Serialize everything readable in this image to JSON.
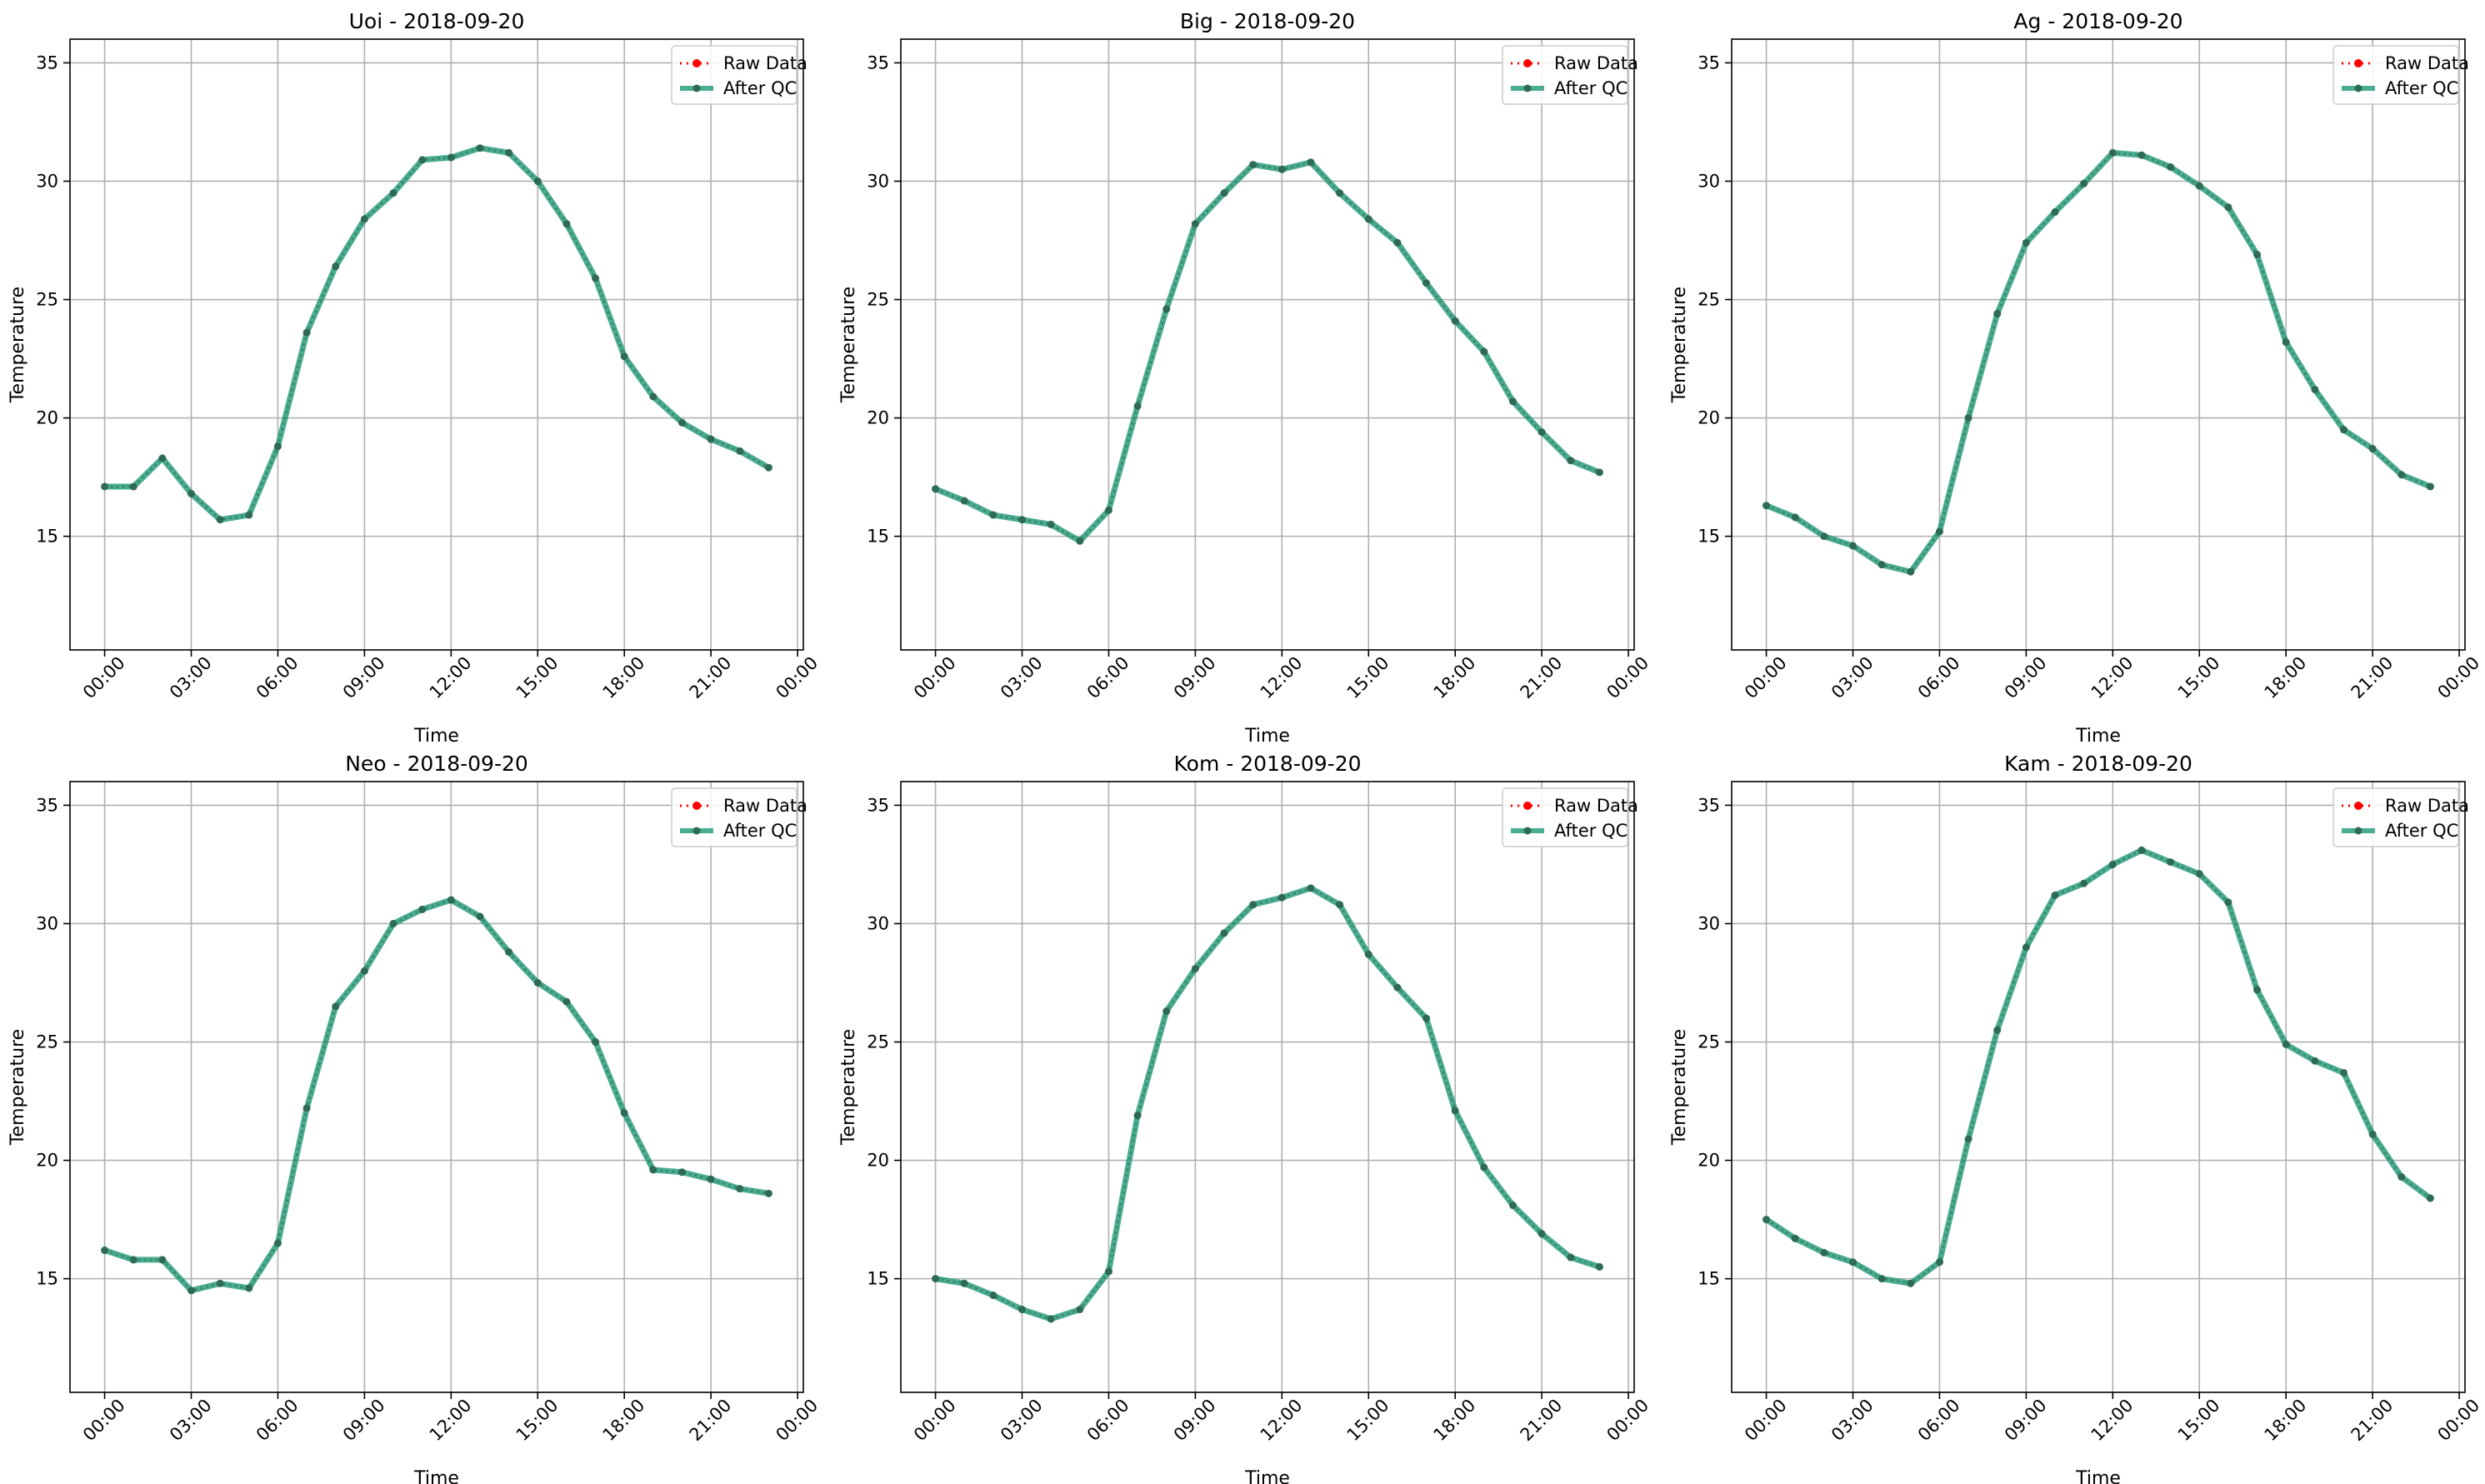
{
  "figure": {
    "colors": {
      "raw": "#ff0000",
      "qc": "#2a9d7c",
      "qc_marker": "#2e6b55",
      "grid": "#b0b0b0"
    }
  },
  "chart_data": [
    {
      "type": "line",
      "title": "Uoi - 2018-09-20",
      "xlabel": "Time",
      "ylabel": "Temperature",
      "ylim": [
        10.2,
        36.0
      ],
      "xlim": [
        "2018-09-19 22:48",
        "2018-09-21 00:12"
      ],
      "x": [
        "00:00",
        "01:00",
        "02:00",
        "03:00",
        "04:00",
        "05:00",
        "06:00",
        "07:00",
        "08:00",
        "09:00",
        "10:00",
        "11:00",
        "12:00",
        "13:00",
        "14:00",
        "15:00",
        "16:00",
        "17:00",
        "18:00",
        "19:00",
        "20:00",
        "21:00",
        "22:00",
        "23:00"
      ],
      "xtick_labels": [
        "00:00",
        "03:00",
        "06:00",
        "09:00",
        "12:00",
        "15:00",
        "18:00",
        "21:00",
        "00:00"
      ],
      "ytick_labels": [
        "15",
        "20",
        "25",
        "30",
        "35"
      ],
      "legend": {
        "position": "top-right",
        "entries": [
          "Raw Data",
          "After QC"
        ]
      },
      "grid": true,
      "series": [
        {
          "name": "Raw Data",
          "values": [
            17.1,
            17.1,
            18.3,
            16.8,
            15.7,
            15.9,
            18.8,
            23.6,
            26.4,
            28.4,
            29.5,
            30.9,
            31.0,
            31.4,
            31.2,
            30.0,
            28.2,
            25.9,
            22.6,
            20.9,
            19.8,
            19.1,
            18.6,
            17.9
          ]
        },
        {
          "name": "After QC",
          "values": [
            17.1,
            17.1,
            18.3,
            16.8,
            15.7,
            15.9,
            18.8,
            23.6,
            26.4,
            28.4,
            29.5,
            30.9,
            31.0,
            31.4,
            31.2,
            30.0,
            28.2,
            25.9,
            22.6,
            20.9,
            19.8,
            19.1,
            18.6,
            17.9
          ]
        }
      ]
    },
    {
      "type": "line",
      "title": "Big - 2018-09-20",
      "xlabel": "Time",
      "ylabel": "Temperature",
      "ylim": [
        10.2,
        36.0
      ],
      "xlim": [
        "2018-09-19 22:48",
        "2018-09-21 00:12"
      ],
      "x": [
        "00:00",
        "01:00",
        "02:00",
        "03:00",
        "04:00",
        "05:00",
        "06:00",
        "07:00",
        "08:00",
        "09:00",
        "10:00",
        "11:00",
        "12:00",
        "13:00",
        "14:00",
        "15:00",
        "16:00",
        "17:00",
        "18:00",
        "19:00",
        "20:00",
        "21:00",
        "22:00",
        "23:00"
      ],
      "xtick_labels": [
        "00:00",
        "03:00",
        "06:00",
        "09:00",
        "12:00",
        "15:00",
        "18:00",
        "21:00",
        "00:00"
      ],
      "ytick_labels": [
        "15",
        "20",
        "25",
        "30",
        "35"
      ],
      "legend": {
        "position": "top-right",
        "entries": [
          "Raw Data",
          "After QC"
        ]
      },
      "grid": true,
      "series": [
        {
          "name": "Raw Data",
          "values": [
            17.0,
            16.5,
            15.9,
            15.7,
            15.5,
            14.8,
            16.1,
            20.5,
            24.6,
            28.2,
            29.5,
            30.7,
            30.5,
            30.8,
            29.5,
            28.4,
            27.4,
            25.7,
            24.1,
            22.8,
            20.7,
            19.4,
            18.2,
            17.7
          ]
        },
        {
          "name": "After QC",
          "values": [
            17.0,
            16.5,
            15.9,
            15.7,
            15.5,
            14.8,
            16.1,
            20.5,
            24.6,
            28.2,
            29.5,
            30.7,
            30.5,
            30.8,
            29.5,
            28.4,
            27.4,
            25.7,
            24.1,
            22.8,
            20.7,
            19.4,
            18.2,
            17.7
          ]
        }
      ]
    },
    {
      "type": "line",
      "title": "Ag - 2018-09-20",
      "xlabel": "Time",
      "ylabel": "Temperature",
      "ylim": [
        10.2,
        36.0
      ],
      "xlim": [
        "2018-09-19 22:48",
        "2018-09-21 00:12"
      ],
      "x": [
        "00:00",
        "01:00",
        "02:00",
        "03:00",
        "04:00",
        "05:00",
        "06:00",
        "07:00",
        "08:00",
        "09:00",
        "10:00",
        "11:00",
        "12:00",
        "13:00",
        "14:00",
        "15:00",
        "16:00",
        "17:00",
        "18:00",
        "19:00",
        "20:00",
        "21:00",
        "22:00",
        "23:00"
      ],
      "xtick_labels": [
        "00:00",
        "03:00",
        "06:00",
        "09:00",
        "12:00",
        "15:00",
        "18:00",
        "21:00",
        "00:00"
      ],
      "ytick_labels": [
        "15",
        "20",
        "25",
        "30",
        "35"
      ],
      "legend": {
        "position": "top-right",
        "entries": [
          "Raw Data",
          "After QC"
        ]
      },
      "grid": true,
      "series": [
        {
          "name": "Raw Data",
          "values": [
            16.3,
            15.8,
            15.0,
            14.6,
            13.8,
            13.5,
            15.2,
            20.0,
            24.4,
            27.4,
            28.7,
            29.9,
            31.2,
            31.1,
            30.6,
            29.8,
            28.9,
            26.9,
            23.2,
            21.2,
            19.5,
            18.7,
            17.6,
            17.1
          ]
        },
        {
          "name": "After QC",
          "values": [
            16.3,
            15.8,
            15.0,
            14.6,
            13.8,
            13.5,
            15.2,
            20.0,
            24.4,
            27.4,
            28.7,
            29.9,
            31.2,
            31.1,
            30.6,
            29.8,
            28.9,
            26.9,
            23.2,
            21.2,
            19.5,
            18.7,
            17.6,
            17.1
          ]
        }
      ]
    },
    {
      "type": "line",
      "title": "Neo - 2018-09-20",
      "xlabel": "Time",
      "ylabel": "Temperature",
      "ylim": [
        10.2,
        36.0
      ],
      "xlim": [
        "2018-09-19 22:48",
        "2018-09-21 00:12"
      ],
      "x": [
        "00:00",
        "01:00",
        "02:00",
        "03:00",
        "04:00",
        "05:00",
        "06:00",
        "07:00",
        "08:00",
        "09:00",
        "10:00",
        "11:00",
        "12:00",
        "13:00",
        "14:00",
        "15:00",
        "16:00",
        "17:00",
        "18:00",
        "19:00",
        "20:00",
        "21:00",
        "22:00",
        "23:00"
      ],
      "xtick_labels": [
        "00:00",
        "03:00",
        "06:00",
        "09:00",
        "12:00",
        "15:00",
        "18:00",
        "21:00",
        "00:00"
      ],
      "ytick_labels": [
        "15",
        "20",
        "25",
        "30",
        "35"
      ],
      "legend": {
        "position": "top-right",
        "entries": [
          "Raw Data",
          "After QC"
        ]
      },
      "grid": true,
      "series": [
        {
          "name": "Raw Data",
          "values": [
            16.2,
            15.8,
            15.8,
            14.5,
            14.8,
            14.6,
            16.5,
            22.2,
            26.5,
            28.0,
            30.0,
            30.6,
            31.0,
            30.3,
            28.8,
            27.5,
            26.7,
            25.0,
            22.0,
            19.6,
            19.5,
            19.2,
            18.8,
            18.6
          ]
        },
        {
          "name": "After QC",
          "values": [
            16.2,
            15.8,
            15.8,
            14.5,
            14.8,
            14.6,
            16.5,
            22.2,
            26.5,
            28.0,
            30.0,
            30.6,
            31.0,
            30.3,
            28.8,
            27.5,
            26.7,
            25.0,
            22.0,
            19.6,
            19.5,
            19.2,
            18.8,
            18.6
          ]
        }
      ]
    },
    {
      "type": "line",
      "title": "Kom - 2018-09-20",
      "xlabel": "Time",
      "ylabel": "Temperature",
      "ylim": [
        10.2,
        36.0
      ],
      "xlim": [
        "2018-09-19 22:48",
        "2018-09-21 00:12"
      ],
      "x": [
        "00:00",
        "01:00",
        "02:00",
        "03:00",
        "04:00",
        "05:00",
        "06:00",
        "07:00",
        "08:00",
        "09:00",
        "10:00",
        "11:00",
        "12:00",
        "13:00",
        "14:00",
        "15:00",
        "16:00",
        "17:00",
        "18:00",
        "19:00",
        "20:00",
        "21:00",
        "22:00",
        "23:00"
      ],
      "xtick_labels": [
        "00:00",
        "03:00",
        "06:00",
        "09:00",
        "12:00",
        "15:00",
        "18:00",
        "21:00",
        "00:00"
      ],
      "ytick_labels": [
        "15",
        "20",
        "25",
        "30",
        "35"
      ],
      "legend": {
        "position": "top-right",
        "entries": [
          "Raw Data",
          "After QC"
        ]
      },
      "grid": true,
      "series": [
        {
          "name": "Raw Data",
          "values": [
            15.0,
            14.8,
            14.3,
            13.7,
            13.3,
            13.7,
            15.3,
            21.9,
            26.3,
            28.1,
            29.6,
            30.8,
            31.1,
            31.5,
            30.8,
            28.7,
            27.3,
            26.0,
            22.1,
            19.7,
            18.1,
            16.9,
            15.9,
            15.5
          ]
        },
        {
          "name": "After QC",
          "values": [
            15.0,
            14.8,
            14.3,
            13.7,
            13.3,
            13.7,
            15.3,
            21.9,
            26.3,
            28.1,
            29.6,
            30.8,
            31.1,
            31.5,
            30.8,
            28.7,
            27.3,
            26.0,
            22.1,
            19.7,
            18.1,
            16.9,
            15.9,
            15.5
          ]
        }
      ]
    },
    {
      "type": "line",
      "title": "Kam - 2018-09-20",
      "xlabel": "Time",
      "ylabel": "Temperature",
      "ylim": [
        10.2,
        36.0
      ],
      "xlim": [
        "2018-09-19 22:48",
        "2018-09-21 00:12"
      ],
      "x": [
        "00:00",
        "01:00",
        "02:00",
        "03:00",
        "04:00",
        "05:00",
        "06:00",
        "07:00",
        "08:00",
        "09:00",
        "10:00",
        "11:00",
        "12:00",
        "13:00",
        "14:00",
        "15:00",
        "16:00",
        "17:00",
        "18:00",
        "19:00",
        "20:00",
        "21:00",
        "22:00",
        "23:00"
      ],
      "xtick_labels": [
        "00:00",
        "03:00",
        "06:00",
        "09:00",
        "12:00",
        "15:00",
        "18:00",
        "21:00",
        "00:00"
      ],
      "ytick_labels": [
        "15",
        "20",
        "25",
        "30",
        "35"
      ],
      "legend": {
        "position": "top-right",
        "entries": [
          "Raw Data",
          "After QC"
        ]
      },
      "grid": true,
      "series": [
        {
          "name": "Raw Data",
          "values": [
            17.5,
            16.7,
            16.1,
            15.7,
            15.0,
            14.8,
            15.7,
            20.9,
            25.5,
            29.0,
            31.2,
            31.7,
            32.5,
            33.1,
            32.6,
            32.1,
            30.9,
            27.2,
            24.9,
            24.2,
            23.7,
            21.1,
            19.3,
            18.4
          ]
        },
        {
          "name": "After QC",
          "values": [
            17.5,
            16.7,
            16.1,
            15.7,
            15.0,
            14.8,
            15.7,
            20.9,
            25.5,
            29.0,
            31.2,
            31.7,
            32.5,
            33.1,
            32.6,
            32.1,
            30.9,
            27.2,
            24.9,
            24.2,
            23.7,
            21.1,
            19.3,
            18.4
          ]
        }
      ]
    }
  ]
}
